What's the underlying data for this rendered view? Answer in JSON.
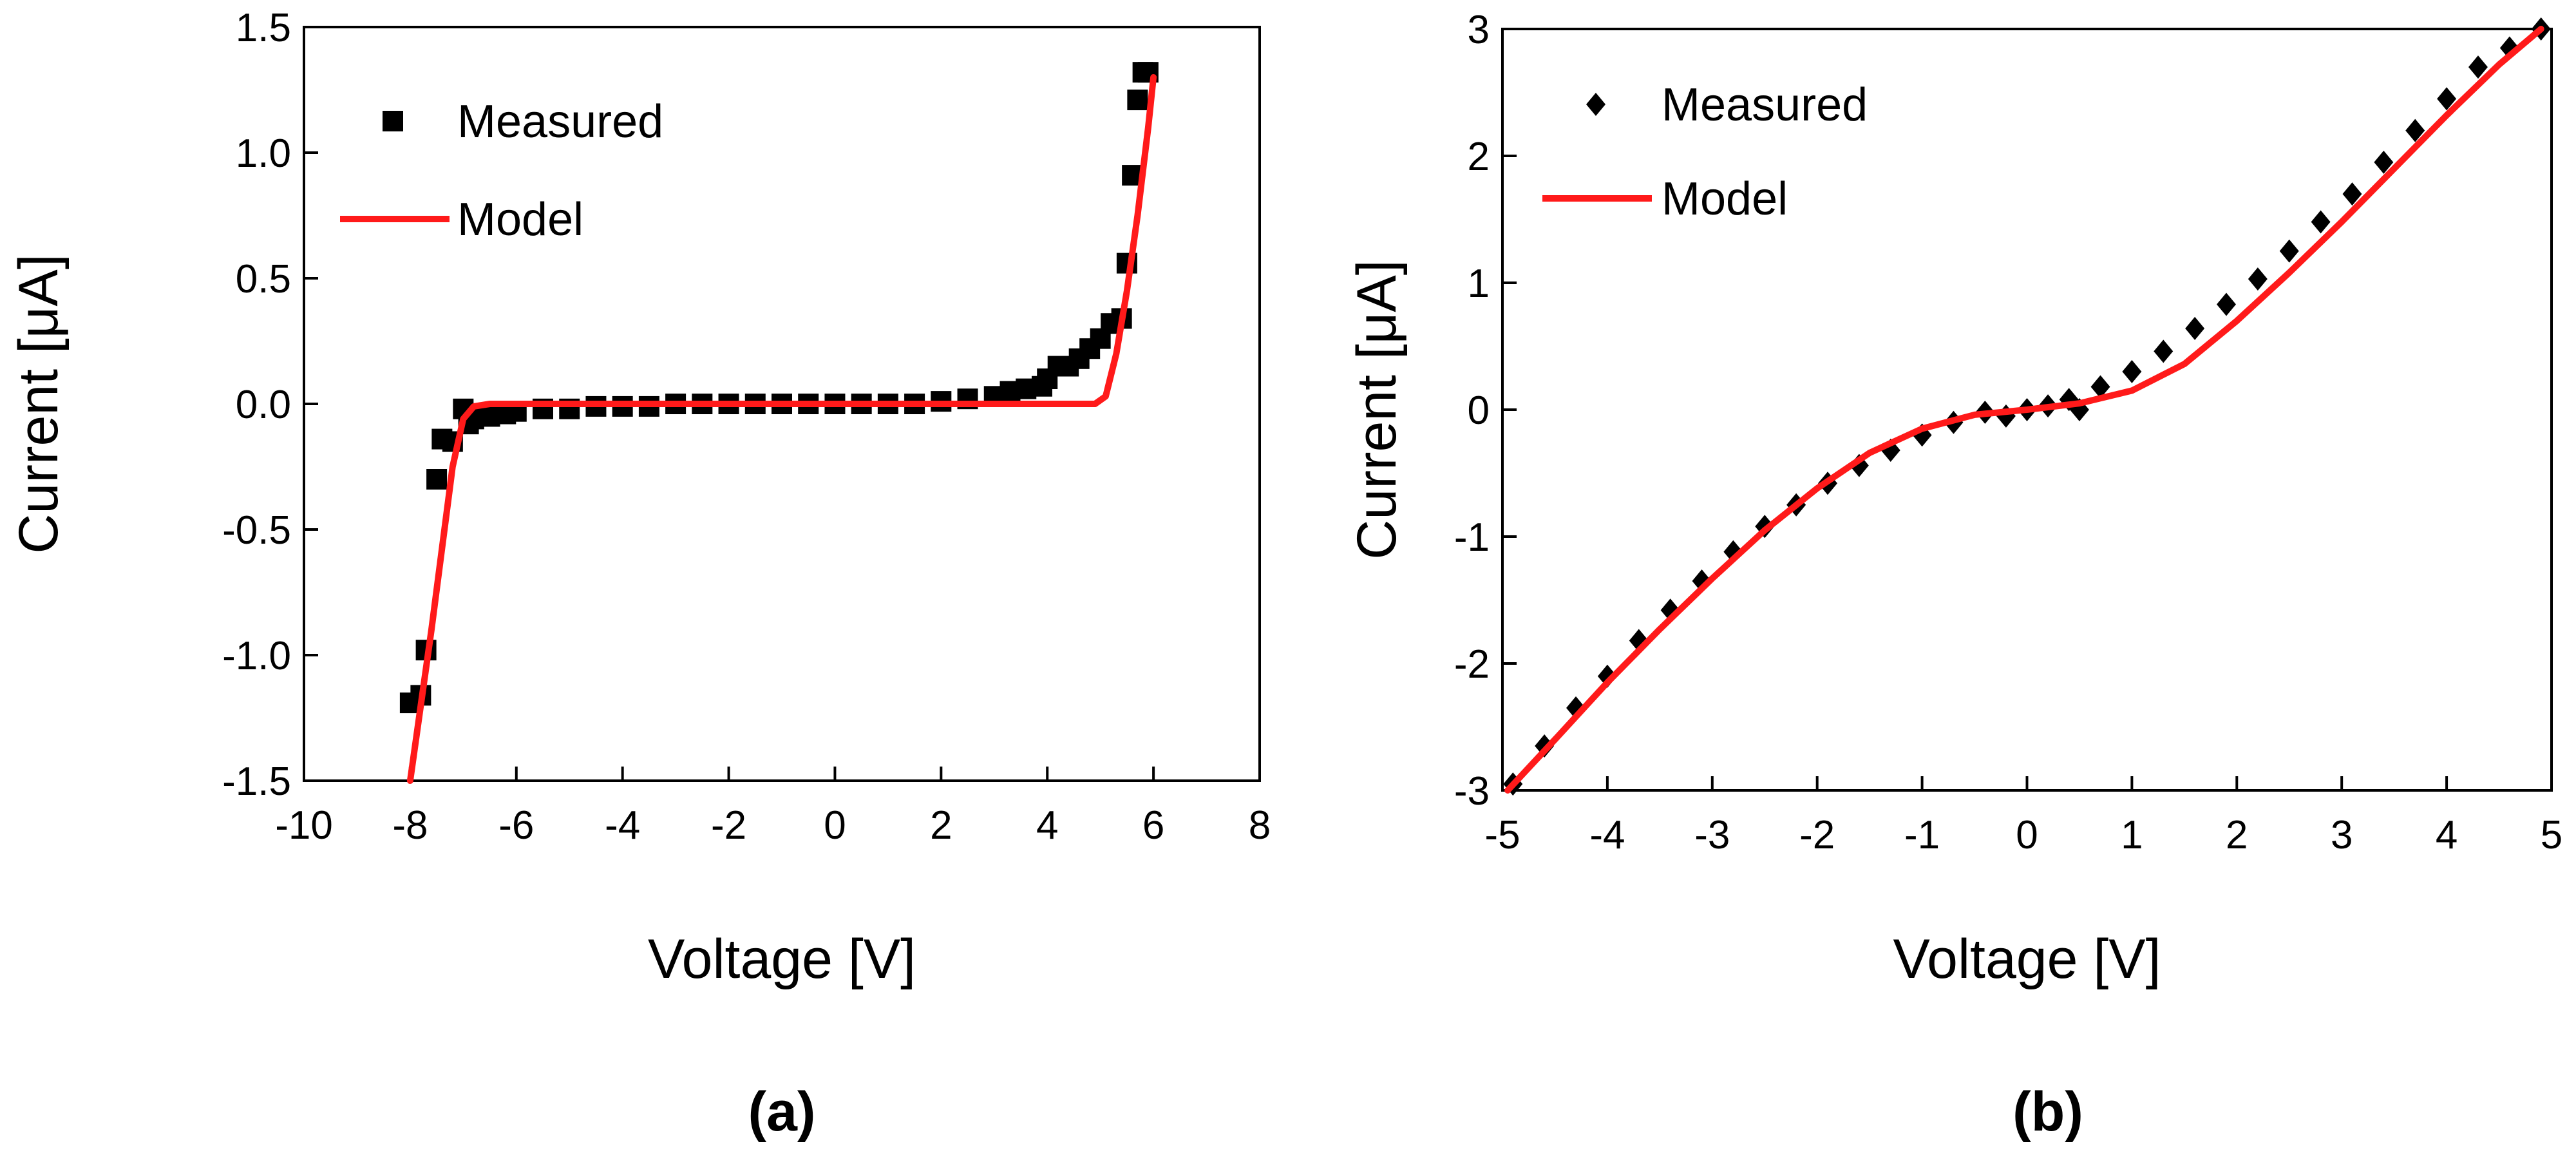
{
  "chart_data": [
    {
      "type": "scatter",
      "panel_label": "(a)",
      "xlabel": "Voltage [V]",
      "ylabel": "Current [μA]",
      "xlim": [
        -10,
        8
      ],
      "ylim": [
        -1.5,
        1.5
      ],
      "xticks": [
        "-10",
        "-8",
        "-6",
        "-4",
        "-2",
        "0",
        "2",
        "4",
        "6",
        "8"
      ],
      "yticks": [
        "-1.5",
        "-1.0",
        "-0.5",
        "0.0",
        "0.5",
        "1.0",
        "1.5"
      ],
      "legend_position": "top-left",
      "series": [
        {
          "name": "Measured",
          "marker": "square",
          "color": "#000000",
          "x": [
            -8.0,
            -7.8,
            -7.7,
            -7.5,
            -7.4,
            -7.2,
            -7.0,
            -6.9,
            -6.8,
            -6.5,
            -6.2,
            -6.0,
            -5.5,
            -5.0,
            -4.5,
            -4.0,
            -3.5,
            -3.0,
            -2.5,
            -2.0,
            -1.5,
            -1.0,
            -0.5,
            0.0,
            0.5,
            1.0,
            1.5,
            2.0,
            2.5,
            3.0,
            3.3,
            3.6,
            3.9,
            4.0,
            4.2,
            4.4,
            4.6,
            4.8,
            5.0,
            5.2,
            5.4,
            5.5,
            5.6,
            5.7,
            5.8,
            5.9
          ],
          "y": [
            -1.19,
            -1.16,
            -0.98,
            -0.3,
            -0.14,
            -0.15,
            -0.02,
            -0.08,
            -0.06,
            -0.05,
            -0.04,
            -0.03,
            -0.02,
            -0.02,
            -0.01,
            -0.01,
            -0.01,
            0.0,
            0.0,
            0.0,
            0.0,
            0.0,
            0.0,
            0.0,
            0.0,
            0.0,
            0.0,
            0.01,
            0.02,
            0.03,
            0.05,
            0.06,
            0.07,
            0.1,
            0.15,
            0.15,
            0.18,
            0.22,
            0.26,
            0.32,
            0.34,
            0.56,
            0.91,
            1.21,
            1.32,
            1.32
          ]
        },
        {
          "name": "Model",
          "marker": "line",
          "color": "#ff1a1a",
          "x": [
            -8.0,
            -7.6,
            -7.2,
            -7.0,
            -6.8,
            -6.5,
            -4.0,
            0.0,
            4.0,
            4.9,
            5.1,
            5.3,
            5.5,
            5.7,
            5.9,
            6.0
          ],
          "y": [
            -1.5,
            -0.9,
            -0.25,
            -0.06,
            -0.01,
            0.0,
            0.0,
            0.0,
            0.0,
            0.0,
            0.03,
            0.2,
            0.45,
            0.75,
            1.1,
            1.3
          ]
        }
      ]
    },
    {
      "type": "scatter",
      "panel_label": "(b)",
      "xlabel": "Voltage [V]",
      "ylabel": "Current [μA]",
      "xlim": [
        -5,
        5
      ],
      "ylim": [
        -3,
        3
      ],
      "xticks": [
        "-5",
        "-4",
        "-3",
        "-2",
        "-1",
        "0",
        "1",
        "2",
        "3",
        "4",
        "5"
      ],
      "yticks": [
        "-3",
        "-2",
        "-1",
        "0",
        "1",
        "2",
        "3"
      ],
      "legend_position": "top-left",
      "series": [
        {
          "name": "Measured",
          "marker": "diamond",
          "color": "#000000",
          "x": [
            -4.9,
            -4.6,
            -4.3,
            -4.0,
            -3.7,
            -3.4,
            -3.1,
            -2.8,
            -2.5,
            -2.2,
            -1.9,
            -1.6,
            -1.3,
            -1.0,
            -0.7,
            -0.4,
            -0.2,
            0.0,
            0.2,
            0.4,
            0.5,
            0.7,
            1.0,
            1.3,
            1.6,
            1.9,
            2.2,
            2.5,
            2.8,
            3.1,
            3.4,
            3.7,
            4.0,
            4.3,
            4.6,
            4.9
          ],
          "y": [
            -2.95,
            -2.65,
            -2.35,
            -2.1,
            -1.82,
            -1.58,
            -1.35,
            -1.12,
            -0.92,
            -0.75,
            -0.58,
            -0.44,
            -0.32,
            -0.2,
            -0.1,
            -0.02,
            -0.05,
            0.0,
            0.03,
            0.08,
            0.0,
            0.18,
            0.3,
            0.46,
            0.64,
            0.83,
            1.03,
            1.25,
            1.48,
            1.7,
            1.95,
            2.2,
            2.45,
            2.7,
            2.85,
            3.0
          ]
        },
        {
          "name": "Model",
          "marker": "line",
          "color": "#ff1a1a",
          "x": [
            -4.95,
            -4.5,
            -4.0,
            -3.5,
            -3.0,
            -2.5,
            -2.0,
            -1.5,
            -1.0,
            -0.5,
            0.0,
            0.5,
            1.0,
            1.5,
            2.0,
            2.5,
            3.0,
            3.5,
            4.0,
            4.5,
            4.9
          ],
          "y": [
            -3.0,
            -2.6,
            -2.15,
            -1.73,
            -1.33,
            -0.95,
            -0.62,
            -0.34,
            -0.15,
            -0.04,
            0.0,
            0.05,
            0.15,
            0.36,
            0.7,
            1.08,
            1.48,
            1.9,
            2.32,
            2.72,
            3.0
          ]
        }
      ]
    }
  ]
}
